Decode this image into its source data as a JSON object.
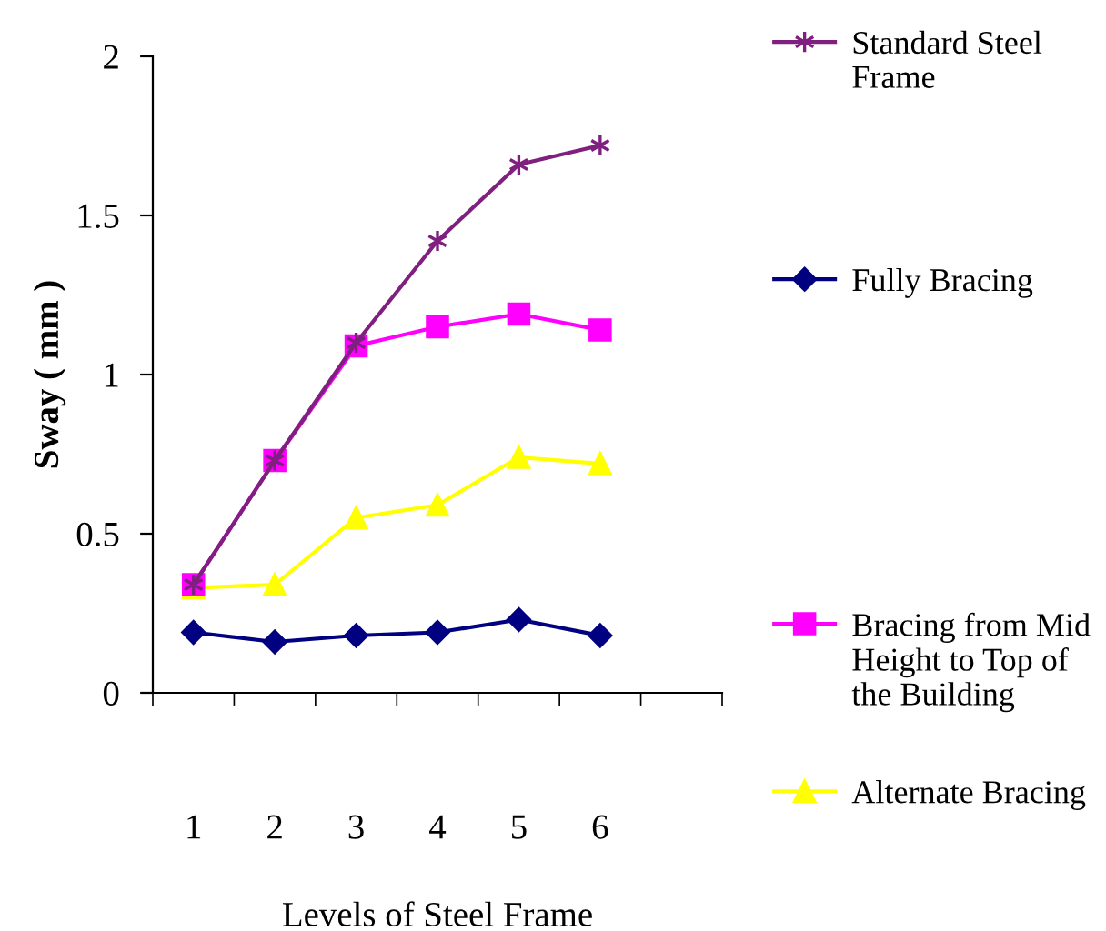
{
  "chart_data": {
    "type": "line",
    "xlabel": "Levels of Steel Frame",
    "ylabel": "Sway ( mm )",
    "categories": [
      "1",
      "2",
      "3",
      "4",
      "5",
      "6",
      null
    ],
    "ylim": [
      0,
      2
    ],
    "yticks": [
      0,
      0.5,
      1,
      1.5,
      2
    ],
    "grid": false,
    "legend": "right",
    "series": [
      {
        "name": "Standard Steel Frame",
        "color": "#7f1f7f",
        "marker": "cross",
        "values": [
          0.34,
          0.73,
          1.1,
          1.42,
          1.66,
          1.72,
          null
        ]
      },
      {
        "name": "Fully Bracing",
        "color": "#000080",
        "marker": "diamond",
        "values": [
          0.19,
          0.16,
          0.18,
          0.19,
          0.23,
          0.18,
          null
        ]
      },
      {
        "name": "Bracing from Mid Height to Top of the Building",
        "color": "#ff00ff",
        "marker": "square",
        "values": [
          0.34,
          0.73,
          1.09,
          1.15,
          1.19,
          1.14,
          null
        ]
      },
      {
        "name": "Alternate Bracing",
        "color": "#ffff00",
        "marker": "triangle",
        "values": [
          0.33,
          0.34,
          0.55,
          0.59,
          0.74,
          0.72,
          null
        ]
      }
    ]
  }
}
